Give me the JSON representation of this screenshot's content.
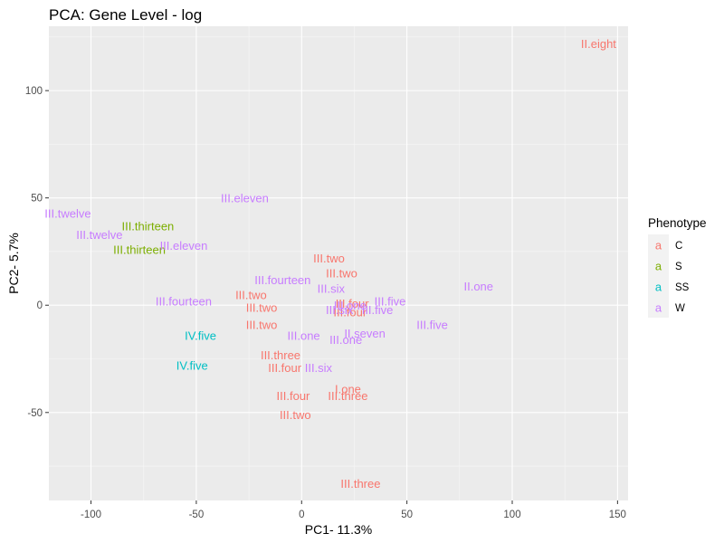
{
  "chart_data": {
    "type": "scatter",
    "title": "PCA: Gene Level - log",
    "xlabel": "PC1- 11.3%",
    "ylabel": "PC2- 5.7%",
    "xlim": [
      -120,
      155
    ],
    "ylim": [
      -91,
      130
    ],
    "xticks": [
      -100,
      -50,
      0,
      50,
      100,
      150
    ],
    "yticks": [
      -50,
      0,
      50,
      100
    ],
    "grid": true,
    "legend": {
      "title": "Phenotype",
      "position": "right",
      "key_glyph": "a",
      "entries": [
        {
          "name": "C",
          "color": "#F8766D"
        },
        {
          "name": "S",
          "color": "#7CAE00"
        },
        {
          "name": "SS",
          "color": "#00BFC4"
        },
        {
          "name": "W",
          "color": "#C77CFF"
        }
      ]
    },
    "series": [
      {
        "name": "C",
        "color": "#F8766D",
        "points": [
          {
            "label": "II.eight",
            "x": 141,
            "y": 122
          },
          {
            "label": "III.two",
            "x": 13,
            "y": 22
          },
          {
            "label": "III.two",
            "x": 19,
            "y": 15
          },
          {
            "label": "III.two",
            "x": -24,
            "y": 5
          },
          {
            "label": "III.two",
            "x": -19,
            "y": -1
          },
          {
            "label": "III.two",
            "x": -19,
            "y": -9
          },
          {
            "label": "III.four",
            "x": 24,
            "y": 1
          },
          {
            "label": "III.four",
            "x": 23,
            "y": -3
          },
          {
            "label": "III.three",
            "x": -10,
            "y": -23
          },
          {
            "label": "III.four",
            "x": -8,
            "y": -29
          },
          {
            "label": "III.four",
            "x": -4,
            "y": -42
          },
          {
            "label": "I.one",
            "x": 22,
            "y": -39
          },
          {
            "label": "III.three",
            "x": 22,
            "y": -42
          },
          {
            "label": "III.two",
            "x": -3,
            "y": -51
          },
          {
            "label": "III.three",
            "x": 28,
            "y": -83
          }
        ]
      },
      {
        "name": "S",
        "color": "#7CAE00",
        "points": [
          {
            "label": "III.thirteen",
            "x": -73,
            "y": 37
          },
          {
            "label": "III.thirteen",
            "x": -77,
            "y": 26
          }
        ]
      },
      {
        "name": "SS",
        "color": "#00BFC4",
        "points": [
          {
            "label": "IV.five",
            "x": -48,
            "y": -14
          },
          {
            "label": "IV.five",
            "x": -52,
            "y": -28
          }
        ]
      },
      {
        "name": "W",
        "color": "#C77CFF",
        "points": [
          {
            "label": "III.eleven",
            "x": -27,
            "y": 50
          },
          {
            "label": "III.twelve",
            "x": -111,
            "y": 43
          },
          {
            "label": "III.twelve",
            "x": -96,
            "y": 33
          },
          {
            "label": "III.eleven",
            "x": -56,
            "y": 28
          },
          {
            "label": "III.fourteen",
            "x": -9,
            "y": 12
          },
          {
            "label": "III.six",
            "x": 14,
            "y": 8
          },
          {
            "label": "III.fourteen",
            "x": -56,
            "y": 2
          },
          {
            "label": "III.five",
            "x": 42,
            "y": 2
          },
          {
            "label": "II.one",
            "x": 84,
            "y": 9
          },
          {
            "label": "III.six",
            "x": 18,
            "y": -2
          },
          {
            "label": "III.five",
            "x": 36,
            "y": -2
          },
          {
            "label": "III.one",
            "x": 23,
            "y": 0
          },
          {
            "label": "III.five",
            "x": 62,
            "y": -9
          },
          {
            "label": "II.seven",
            "x": 30,
            "y": -13
          },
          {
            "label": "III.one",
            "x": 1,
            "y": -14
          },
          {
            "label": "III.one",
            "x": 21,
            "y": -16
          },
          {
            "label": "III.six",
            "x": 8,
            "y": -29
          }
        ]
      }
    ]
  }
}
